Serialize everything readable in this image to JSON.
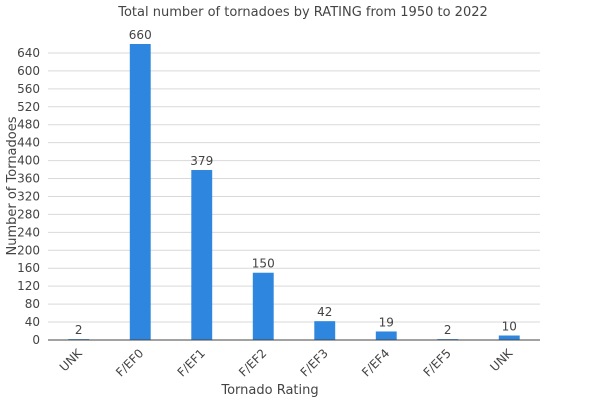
{
  "chart_data": {
    "type": "bar",
    "title": "Total number of tornadoes by RATING from 1950 to 2022",
    "xlabel": "Tornado Rating",
    "ylabel": "Number of Tornadoes",
    "categories": [
      "UNK",
      "F/EF0",
      "F/EF1",
      "F/EF2",
      "F/EF3",
      "F/EF4",
      "F/EF5",
      "UNK"
    ],
    "values": [
      2,
      660,
      379,
      150,
      42,
      19,
      2,
      10
    ],
    "data_labels": [
      "2",
      "660",
      "379",
      "150",
      "42",
      "19",
      "2",
      "10"
    ],
    "ylim": [
      0,
      660
    ],
    "y_ticks": [
      0,
      40,
      80,
      120,
      160,
      200,
      240,
      280,
      320,
      360,
      400,
      440,
      480,
      520,
      560,
      600,
      640
    ],
    "grid": true,
    "legend": "none",
    "bar_color": "#2e86de",
    "grid_color": "#d9d9d9",
    "axis_color": "#444444"
  }
}
